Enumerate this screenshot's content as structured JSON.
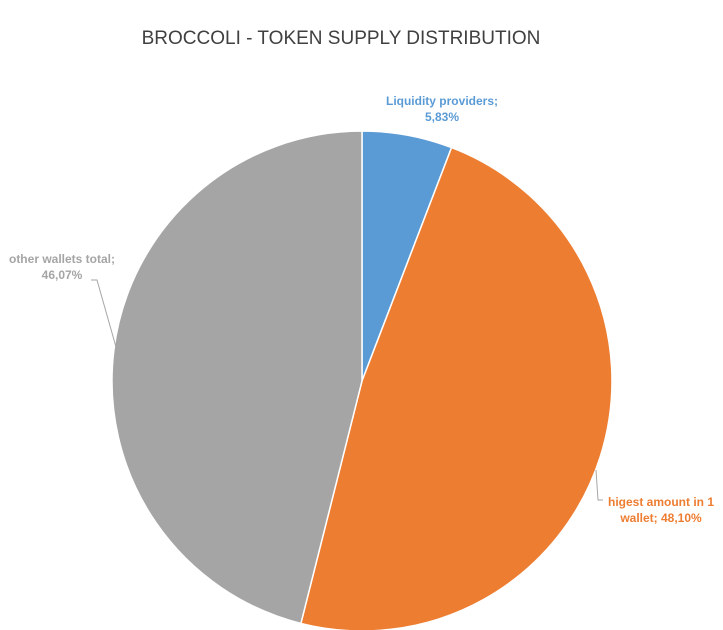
{
  "chart_data": {
    "type": "pie",
    "title": "BROCCOLI - TOKEN SUPPLY DISTRIBUTION",
    "slices": [
      {
        "name": "Liquidity providers",
        "value": 5.83,
        "label_lines": [
          "Liquidity providers;",
          "5,83%"
        ],
        "color": "#5B9BD5"
      },
      {
        "name": "higest amount in 1 wallet",
        "value": 48.1,
        "label_lines": [
          "higest amount in 1",
          "wallet; 48,10%"
        ],
        "color": "#ED7D31"
      },
      {
        "name": "other wallets total",
        "value": 46.07,
        "label_lines": [
          "other wallets total;",
          "46,07%"
        ],
        "color": "#A5A5A5"
      }
    ],
    "start_angle_deg": 0,
    "direction": "clockwise",
    "legend": "none",
    "grid": false
  }
}
